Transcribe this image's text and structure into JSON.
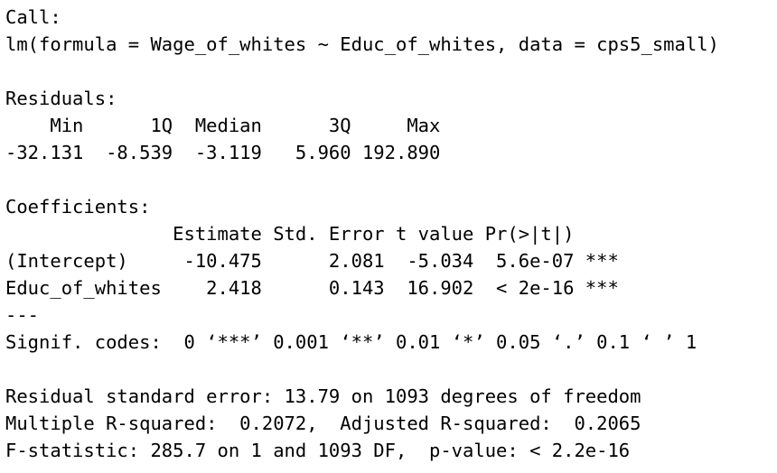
{
  "console": {
    "call_header": "Call:",
    "call": "lm(formula = Wage_of_whites ~ Educ_of_whites, data = cps5_small)",
    "residuals_header": "Residuals:",
    "residuals_labels": "    Min      1Q  Median      3Q     Max ",
    "residuals_values": "-32.131  -8.539  -3.119   5.960 192.890 ",
    "coefficients_header": "Coefficients:",
    "coefficients_columns": "               Estimate Std. Error t value Pr(>|t|)    ",
    "coef_intercept": "(Intercept)     -10.475      2.081  -5.034  5.6e-07 ***",
    "coef_educ": "Educ_of_whites    2.418      0.143  16.902  < 2e-16 ***",
    "separator": "---",
    "signif_codes": "Signif. codes:  0 ‘***’ 0.001 ‘**’ 0.01 ‘*’ 0.05 ‘.’ 0.1 ‘ ’ 1",
    "residual_se": "Residual standard error: 13.79 on 1093 degrees of freedom",
    "r_squared": "Multiple R-squared:  0.2072,\tAdjusted R-squared:  0.2065 ",
    "f_statistic": "F-statistic: 285.7 on 1 and 1093 DF,  p-value: < 2.2e-16"
  }
}
